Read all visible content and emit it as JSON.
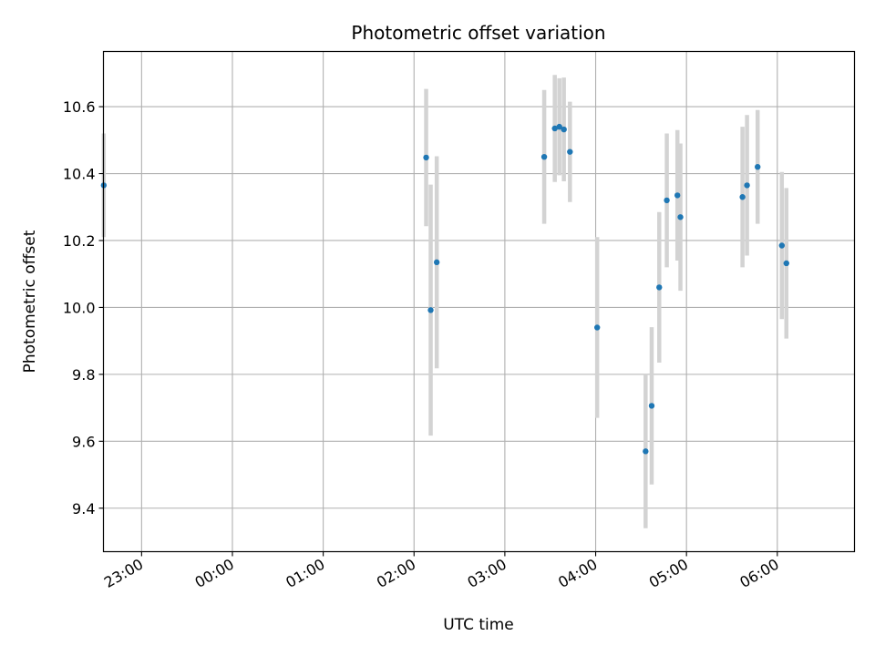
{
  "chart_data": {
    "type": "scatter",
    "title": "Photometric offset variation",
    "xlabel": "UTC time",
    "ylabel": "Photometric offset",
    "grid": true,
    "legend": "none",
    "xlim_minutes": [
      -85.2,
      411.0
    ],
    "ylim": [
      9.27,
      10.765
    ],
    "xticks": [
      {
        "label": "23:00",
        "min": -60
      },
      {
        "label": "00:00",
        "min": 0
      },
      {
        "label": "01:00",
        "min": 60
      },
      {
        "label": "02:00",
        "min": 120
      },
      {
        "label": "03:00",
        "min": 180
      },
      {
        "label": "04:00",
        "min": 240
      },
      {
        "label": "05:00",
        "min": 300
      },
      {
        "label": "06:00",
        "min": 360
      }
    ],
    "yticks": [
      9.4,
      9.6,
      9.8,
      10.0,
      10.2,
      10.4,
      10.6
    ],
    "point_color": "#1f77b4",
    "errorbar_color": "#d3d3d3",
    "points": [
      {
        "time": "22:35",
        "y": 10.365,
        "err": 0.155
      },
      {
        "time": "02:08",
        "y": 10.448,
        "err": 0.205
      },
      {
        "time": "02:11",
        "y": 9.992,
        "err": 0.375
      },
      {
        "time": "02:15",
        "y": 10.135,
        "err": 0.317
      },
      {
        "time": "03:26",
        "y": 10.45,
        "err": 0.2
      },
      {
        "time": "03:33",
        "y": 10.535,
        "err": 0.16
      },
      {
        "time": "03:36",
        "y": 10.54,
        "err": 0.145
      },
      {
        "time": "03:39",
        "y": 10.532,
        "err": 0.155
      },
      {
        "time": "03:43",
        "y": 10.465,
        "err": 0.15
      },
      {
        "time": "04:01",
        "y": 9.94,
        "err": 0.27
      },
      {
        "time": "04:33",
        "y": 9.57,
        "err": 0.23
      },
      {
        "time": "04:37",
        "y": 9.706,
        "err": 0.235
      },
      {
        "time": "04:42",
        "y": 10.06,
        "err": 0.225
      },
      {
        "time": "04:47",
        "y": 10.32,
        "err": 0.2
      },
      {
        "time": "04:54",
        "y": 10.335,
        "err": 0.195
      },
      {
        "time": "04:56",
        "y": 10.27,
        "err": 0.22
      },
      {
        "time": "05:37",
        "y": 10.33,
        "err": 0.21
      },
      {
        "time": "05:40",
        "y": 10.365,
        "err": 0.21
      },
      {
        "time": "05:47",
        "y": 10.42,
        "err": 0.17
      },
      {
        "time": "06:03",
        "y": 10.185,
        "err": 0.22
      },
      {
        "time": "06:06",
        "y": 10.132,
        "err": 0.225
      }
    ]
  }
}
